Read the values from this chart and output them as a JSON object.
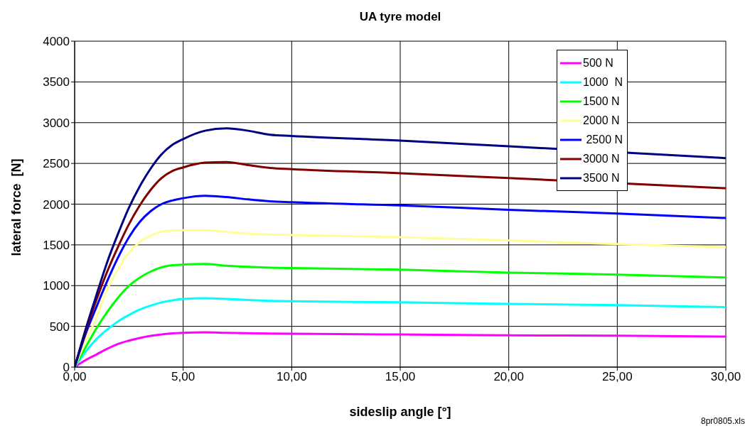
{
  "chart_data": {
    "type": "line",
    "title": "UA tyre model",
    "xlabel": "sideslip angle [°]",
    "ylabel": "lateral force  [N]",
    "annotations": [
      "8pr0805.xls"
    ],
    "x": [
      0,
      0.5,
      1,
      1.5,
      2,
      2.5,
      3,
      3.5,
      4,
      4.5,
      5,
      6,
      7,
      8,
      9,
      10,
      15,
      20,
      25,
      30
    ],
    "series": [
      {
        "name": "500 N",
        "color": "#ff00ff",
        "values": [
          0,
          85,
          154,
          225,
          285,
          325,
          358,
          383,
          401,
          413,
          421,
          427,
          421,
          416,
          412,
          410,
          400,
          390,
          385,
          375
        ]
      },
      {
        "name": "1000  N",
        "color": "#00ffff",
        "values": [
          0,
          185,
          343,
          460,
          561,
          640,
          706,
          755,
          794,
          820,
          837,
          846,
          837,
          823,
          813,
          808,
          795,
          775,
          760,
          735
        ]
      },
      {
        "name": "1500 N",
        "color": "#00ff00",
        "values": [
          0,
          241,
          474,
          677,
          852,
          997,
          1099,
          1172,
          1224,
          1250,
          1259,
          1265,
          1244,
          1230,
          1220,
          1215,
          1195,
          1160,
          1135,
          1100
        ]
      },
      {
        "name": "2000 N",
        "color": "#ffff99",
        "values": [
          0,
          314,
          605,
          953,
          1200,
          1404,
          1535,
          1613,
          1660,
          1675,
          1680,
          1680,
          1660,
          1637,
          1628,
          1622,
          1595,
          1555,
          1510,
          1470
        ]
      },
      {
        "name": " 2500 N",
        "color": "#0000ff",
        "values": [
          0,
          401,
          735,
          1055,
          1346,
          1593,
          1782,
          1913,
          2000,
          2045,
          2073,
          2102,
          2087,
          2058,
          2035,
          2023,
          1985,
          1930,
          1885,
          1830
        ]
      },
      {
        "name": "3000 N",
        "color": "#800000",
        "values": [
          0,
          430,
          823,
          1172,
          1477,
          1753,
          1985,
          2174,
          2320,
          2407,
          2451,
          2509,
          2517,
          2480,
          2445,
          2430,
          2380,
          2320,
          null,
          2195
        ]
      },
      {
        "name": "3500 N",
        "color": "#000080",
        "values": [
          0,
          459,
          881,
          1288,
          1637,
          1956,
          2218,
          2436,
          2610,
          2727,
          2799,
          2901,
          2930,
          2901,
          2852,
          2837,
          2780,
          2710,
          null,
          2565
        ]
      }
    ],
    "xlim": [
      0,
      30
    ],
    "xticks": [
      {
        "value": 0,
        "label": "0,00"
      },
      {
        "value": 5,
        "label": "5,00"
      },
      {
        "value": 10,
        "label": "10,00"
      },
      {
        "value": 15,
        "label": "15,00"
      },
      {
        "value": 20,
        "label": "20,00"
      },
      {
        "value": 25,
        "label": "25,00"
      },
      {
        "value": 30,
        "label": "30,00"
      }
    ],
    "ylim": [
      0,
      4000
    ],
    "yticks": [
      0,
      500,
      1000,
      1500,
      2000,
      2500,
      3000,
      3500,
      4000
    ],
    "grid": true,
    "legend": "top right",
    "marker": "none",
    "line_style": "solid"
  }
}
